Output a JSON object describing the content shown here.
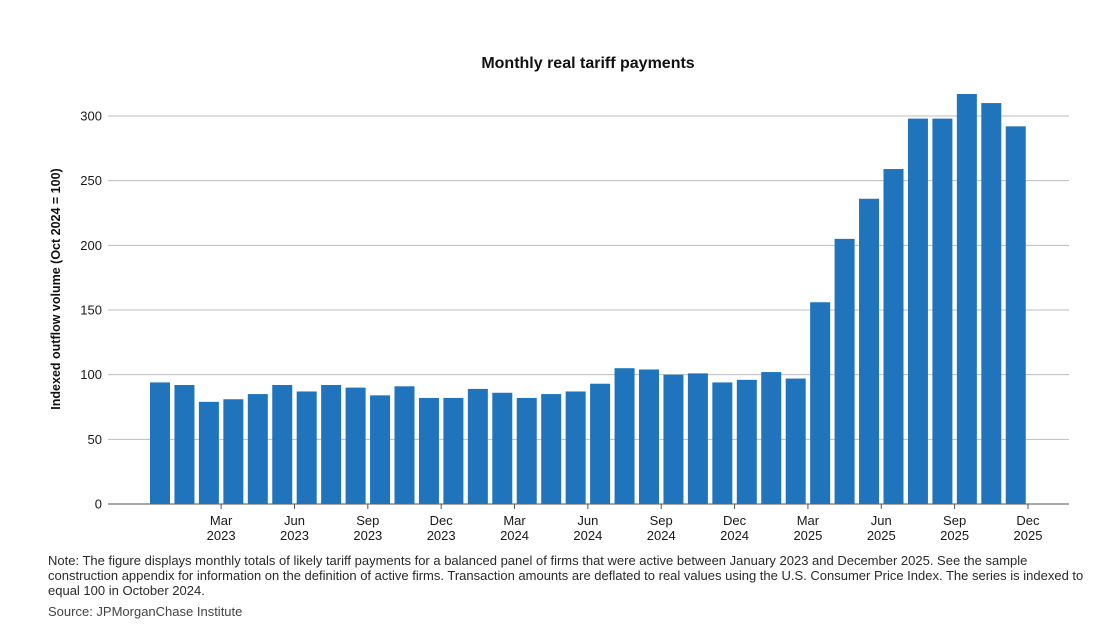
{
  "colors": {
    "bar": "#1f74bc",
    "grid": "#bdbdbd",
    "axis": "#555555"
  },
  "chart_data": {
    "type": "bar",
    "title": "Monthly real tariff payments",
    "xlabel": "",
    "ylabel": "Indexed outflow volume (Oct 2024 = 100)",
    "ylim": [
      0,
      325
    ],
    "yticks": [
      0,
      50,
      100,
      150,
      200,
      250,
      300
    ],
    "grid": true,
    "categories": [
      "Jan 2023",
      "Feb 2023",
      "Mar 2023",
      "Apr 2023",
      "May 2023",
      "Jun 2023",
      "Jul 2023",
      "Aug 2023",
      "Sep 2023",
      "Oct 2023",
      "Nov 2023",
      "Dec 2023",
      "Jan 2024",
      "Feb 2024",
      "Mar 2024",
      "Apr 2024",
      "May 2024",
      "Jun 2024",
      "Jul 2024",
      "Aug 2024",
      "Sep 2024",
      "Oct 2024",
      "Nov 2024",
      "Dec 2024",
      "Jan 2025",
      "Feb 2025",
      "Mar 2025",
      "Apr 2025",
      "May 2025",
      "Jun 2025",
      "Jul 2025",
      "Aug 2025",
      "Sep 2025",
      "Oct 2025",
      "Nov 2025",
      "Dec 2025"
    ],
    "values": [
      94,
      92,
      79,
      81,
      85,
      92,
      87,
      92,
      90,
      84,
      91,
      82,
      82,
      89,
      86,
      82,
      85,
      87,
      93,
      105,
      104,
      100,
      101,
      94,
      96,
      102,
      97,
      156,
      205,
      236,
      259,
      298,
      298,
      317,
      310,
      292
    ],
    "xtick_labels": [
      {
        "index": 2,
        "month": "Mar",
        "year": "2023"
      },
      {
        "index": 5,
        "month": "Jun",
        "year": "2023"
      },
      {
        "index": 8,
        "month": "Sep",
        "year": "2023"
      },
      {
        "index": 11,
        "month": "Dec",
        "year": "2023"
      },
      {
        "index": 14,
        "month": "Mar",
        "year": "2024"
      },
      {
        "index": 17,
        "month": "Jun",
        "year": "2024"
      },
      {
        "index": 20,
        "month": "Sep",
        "year": "2024"
      },
      {
        "index": 23,
        "month": "Dec",
        "year": "2024"
      },
      {
        "index": 26,
        "month": "Mar",
        "year": "2025"
      },
      {
        "index": 29,
        "month": "Jun",
        "year": "2025"
      },
      {
        "index": 32,
        "month": "Sep",
        "year": "2025"
      },
      {
        "index": 35,
        "month": "Dec",
        "year": "2025"
      }
    ]
  },
  "footnote": {
    "note": "Note: The figure displays monthly totals of likely tariff payments for a balanced panel of firms that were active between January 2023 and December 2025. See the sample construction appendix for information on the definition of active firms. Transaction amounts are deflated to real values using the U.S. Consumer Price Index. The series is indexed to equal 100 in October 2024.",
    "source": "Source: JPMorganChase Institute"
  }
}
